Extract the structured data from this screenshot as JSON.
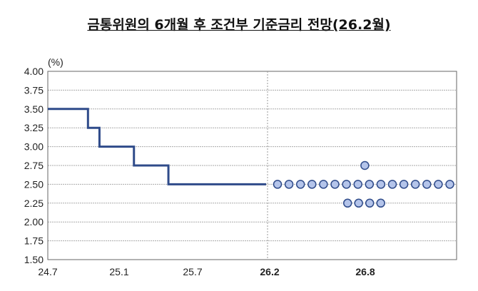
{
  "chart_data": {
    "type": "line",
    "title": "금통위원의 6개월 후 조건부 기준금리 전망(26.2월)",
    "ylabel": "(%)",
    "ylim": [
      1.5,
      4.0
    ],
    "yticks": [
      "4.00",
      "3.75",
      "3.50",
      "3.25",
      "3.00",
      "2.75",
      "2.50",
      "2.25",
      "2.00",
      "1.75",
      "1.50"
    ],
    "xticks": [
      "24.7",
      "25.1",
      "25.7",
      "26.2",
      "26.8"
    ],
    "grid": true,
    "line_color": "#2f4b8a",
    "dot_color": "#b4c4ea",
    "policy_rate_steps": [
      {
        "date": "24.7",
        "rate": 3.5
      },
      {
        "date": "24.10",
        "rate": 3.25
      },
      {
        "date": "24.11",
        "rate": 3.0
      },
      {
        "date": "25.2",
        "rate": 2.75
      },
      {
        "date": "25.5",
        "rate": 2.5
      },
      {
        "date": "26.2",
        "rate": 2.5
      }
    ],
    "dot_plot": [
      {
        "rate": 2.75,
        "count": 1
      },
      {
        "rate": 2.5,
        "count": 16
      },
      {
        "rate": 2.25,
        "count": 4
      }
    ]
  }
}
